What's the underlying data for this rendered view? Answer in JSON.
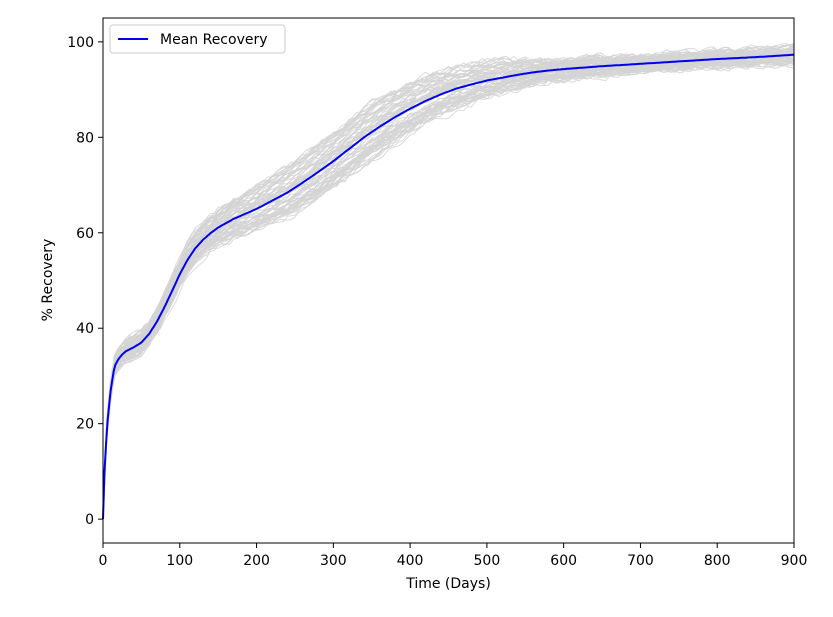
{
  "chart_data": {
    "type": "line",
    "title": "",
    "xlabel": "Time (Days)",
    "ylabel": "% Recovery",
    "xlim": [
      0,
      900
    ],
    "ylim": [
      -5,
      105
    ],
    "xticks": [
      "0",
      "100",
      "200",
      "300",
      "400",
      "500",
      "600",
      "700",
      "800",
      "900"
    ],
    "yticks": [
      "0",
      "20",
      "40",
      "60",
      "80",
      "100"
    ],
    "grid": false,
    "legend_position": "top-left",
    "colors": {
      "mean": "#0000ee",
      "samples": "#d3d3d3"
    },
    "series": [
      {
        "name": "Mean Recovery",
        "x": [
          0,
          2,
          5,
          10,
          15,
          20,
          25,
          30,
          40,
          50,
          60,
          70,
          80,
          90,
          100,
          110,
          120,
          130,
          140,
          150,
          160,
          170,
          180,
          190,
          200,
          220,
          240,
          260,
          280,
          300,
          320,
          340,
          360,
          380,
          400,
          420,
          440,
          460,
          480,
          500,
          520,
          540,
          560,
          580,
          600,
          650,
          700,
          750,
          800,
          850,
          900
        ],
        "y": [
          0,
          10,
          19,
          27,
          32,
          33.5,
          34.5,
          35.2,
          36,
          37,
          38.8,
          41.3,
          44.4,
          47.8,
          51.3,
          54.3,
          56.7,
          58.5,
          59.9,
          61.1,
          62.0,
          62.9,
          63.6,
          64.3,
          65.0,
          66.7,
          68.4,
          70.5,
          72.7,
          75.0,
          77.5,
          80.0,
          82.2,
          84.2,
          86.0,
          87.6,
          89.0,
          90.2,
          91.1,
          91.9,
          92.5,
          93.1,
          93.6,
          94.0,
          94.3,
          94.9,
          95.4,
          95.9,
          96.4,
          96.8,
          97.3
        ]
      }
    ]
  }
}
